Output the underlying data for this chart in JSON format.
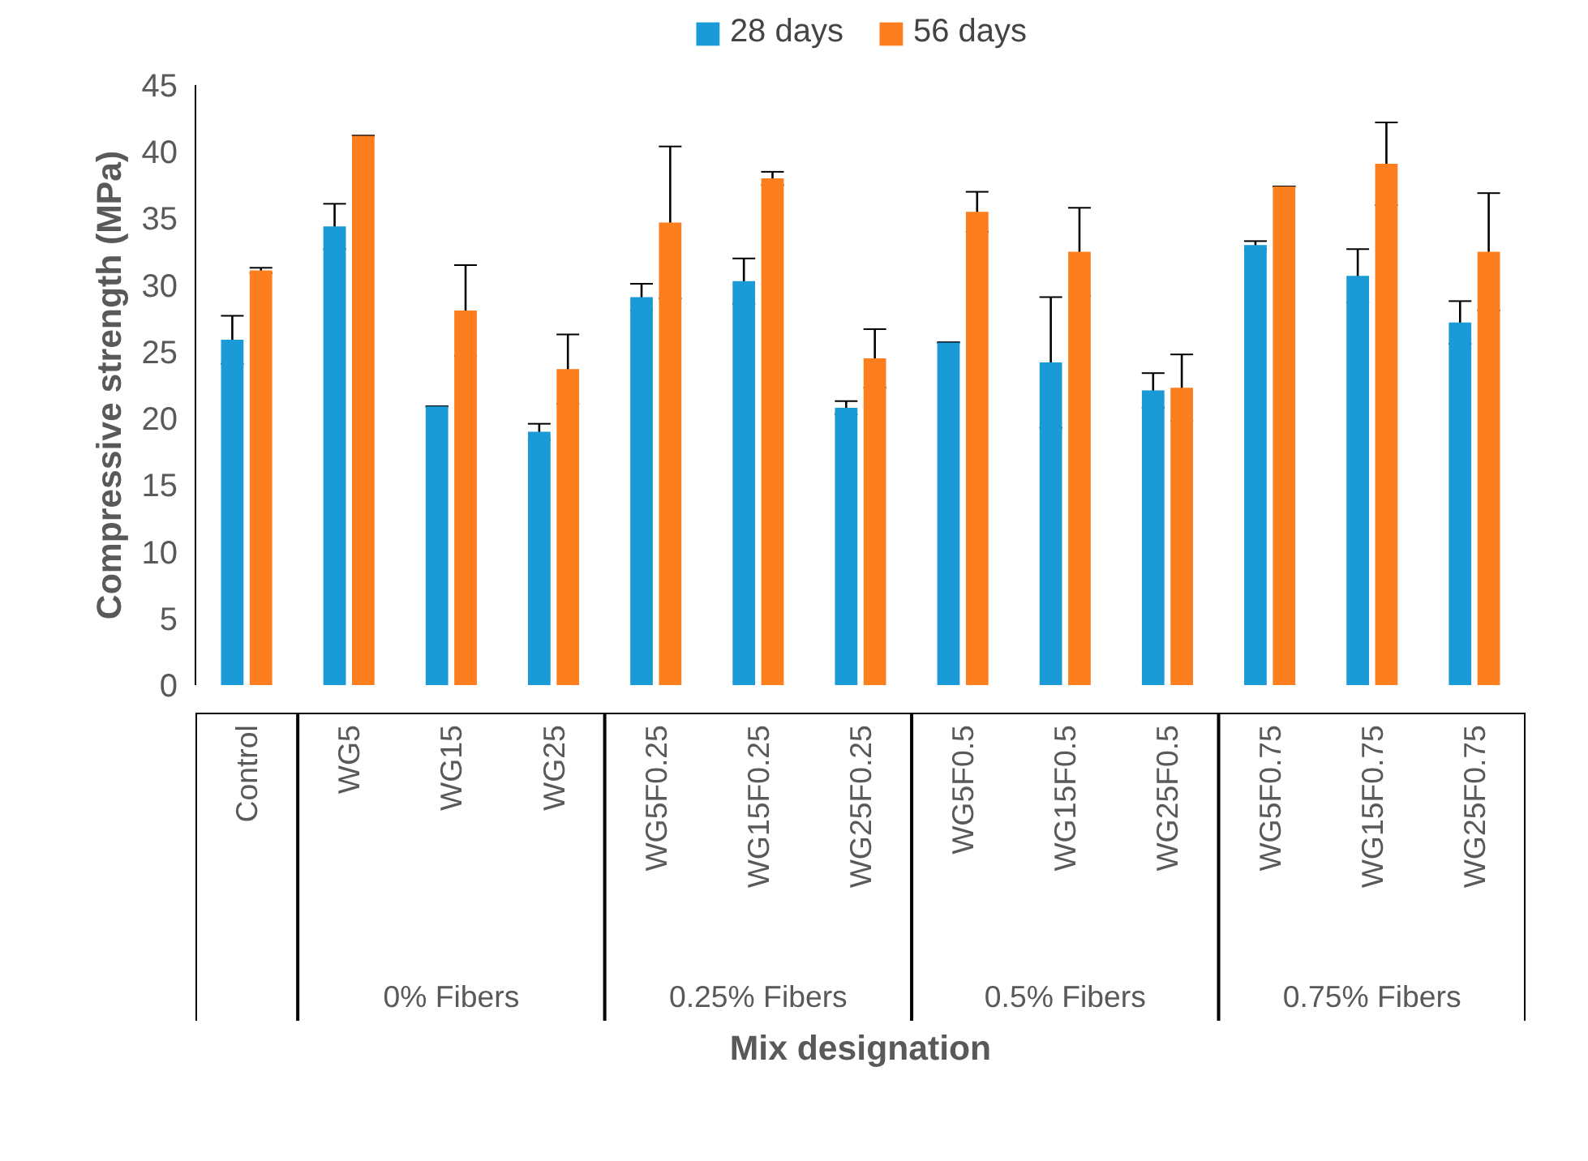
{
  "chart_data": {
    "type": "bar",
    "xlabel": "Mix designation",
    "ylabel": "Compressive strength (MPa)",
    "categories": [
      "Control",
      "WG5",
      "WG15",
      "WG25",
      "WG5F0.25",
      "WG15F0.25",
      "WG25F0.25",
      "WG5F0.5",
      "WG15F0.5",
      "WG25F0.5",
      "WG5F0.75",
      "WG15F0.75",
      "WG25F0.75"
    ],
    "series": [
      {
        "name": "28 days",
        "color": "#1a9ad6",
        "values": [
          25.9,
          34.4,
          20.9,
          19.0,
          29.1,
          30.3,
          20.8,
          25.7,
          24.2,
          22.1,
          33.0,
          30.7,
          27.2
        ],
        "errors": [
          1.8,
          1.7,
          0,
          0.6,
          1.0,
          1.7,
          0.5,
          0,
          4.9,
          1.3,
          0.3,
          2.0,
          1.6
        ]
      },
      {
        "name": "56 days",
        "color": "#fd7e1f",
        "values": [
          31.1,
          41.2,
          28.1,
          23.7,
          34.7,
          38.0,
          24.5,
          35.5,
          32.5,
          22.3,
          37.4,
          39.1,
          32.5
        ],
        "errors": [
          0.2,
          0,
          3.4,
          2.6,
          5.7,
          0.5,
          2.2,
          1.5,
          3.3,
          2.5,
          0,
          3.1,
          4.4
        ]
      }
    ],
    "annotations": [
      "0% Fibers",
      "0.25% Fibers",
      "0.5% Fibers",
      "0.75% Fibers"
    ],
    "ylim": [
      0,
      45
    ],
    "yticks": [
      0,
      5,
      10,
      15,
      20,
      25,
      30,
      35,
      40,
      45
    ],
    "grid": false,
    "legend": "top"
  }
}
